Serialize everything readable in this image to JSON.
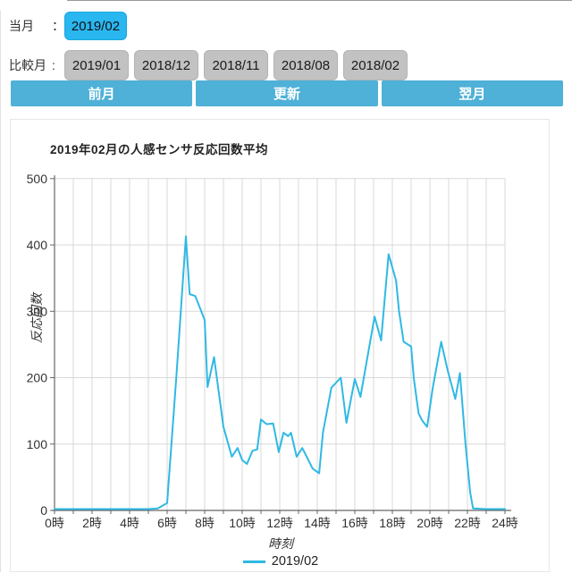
{
  "controls": {
    "current_month": {
      "label": "当月",
      "colon": "：",
      "value": "2019/02"
    },
    "compare_months": {
      "label": "比較月",
      "colon": ":",
      "values": [
        "2019/01",
        "2018/12",
        "2018/11",
        "2018/08",
        "2018/02"
      ]
    },
    "nav_buttons": {
      "prev": "前月",
      "refresh": "更新",
      "next": "翌月"
    }
  },
  "colors": {
    "selected_month_bg": "#2ab6ef",
    "compare_month_bg": "#c2c2c2",
    "nav_button_bg": "#4fb1d7",
    "series_line": "#2fb9e4",
    "gridline": "#d8d8d8",
    "axis": "#666666"
  },
  "chart_data": {
    "type": "line",
    "title": "2019年02月の人感センサ反応回数平均",
    "xlabel": "時刻",
    "ylabel": "反応回数",
    "xlim": [
      0,
      24
    ],
    "ylim": [
      0,
      500
    ],
    "grid": true,
    "legend_position": "bottom",
    "x_tick_labels": [
      "0時",
      "2時",
      "4時",
      "6時",
      "8時",
      "10時",
      "12時",
      "14時",
      "16時",
      "18時",
      "20時",
      "22時",
      "24時"
    ],
    "x_tick_hours": [
      0,
      2,
      4,
      6,
      8,
      10,
      12,
      14,
      16,
      18,
      20,
      22,
      24
    ],
    "y_ticks": [
      0,
      100,
      200,
      300,
      400,
      500
    ],
    "series": [
      {
        "name": "2019/02",
        "color": "#2fb9e4",
        "points": [
          [
            0,
            2
          ],
          [
            0.5,
            2
          ],
          [
            1,
            2
          ],
          [
            1.5,
            2
          ],
          [
            2,
            2
          ],
          [
            2.5,
            2
          ],
          [
            3,
            2
          ],
          [
            3.5,
            2
          ],
          [
            4,
            2
          ],
          [
            4.5,
            2
          ],
          [
            5,
            2
          ],
          [
            5.5,
            3
          ],
          [
            6,
            11
          ],
          [
            6.5,
            205
          ],
          [
            7,
            413
          ],
          [
            7.2,
            326
          ],
          [
            7.5,
            323
          ],
          [
            8,
            287
          ],
          [
            8.15,
            186
          ],
          [
            8.5,
            231
          ],
          [
            9,
            126
          ],
          [
            9.45,
            81
          ],
          [
            9.75,
            94
          ],
          [
            10,
            76
          ],
          [
            10.25,
            70
          ],
          [
            10.55,
            90
          ],
          [
            10.8,
            92
          ],
          [
            11,
            137
          ],
          [
            11.3,
            130
          ],
          [
            11.65,
            131
          ],
          [
            11.95,
            88
          ],
          [
            12.2,
            117
          ],
          [
            12.45,
            112
          ],
          [
            12.6,
            117
          ],
          [
            12.9,
            81
          ],
          [
            13.2,
            94
          ],
          [
            13.4,
            83
          ],
          [
            13.75,
            63
          ],
          [
            14.1,
            56
          ],
          [
            14.3,
            117
          ],
          [
            14.75,
            185
          ],
          [
            15.25,
            200
          ],
          [
            15.55,
            132
          ],
          [
            16,
            198
          ],
          [
            16.3,
            171
          ],
          [
            17.05,
            292
          ],
          [
            17.4,
            256
          ],
          [
            17.8,
            386
          ],
          [
            18.2,
            346
          ],
          [
            18.35,
            301
          ],
          [
            18.6,
            254
          ],
          [
            19,
            247
          ],
          [
            19.15,
            198
          ],
          [
            19.4,
            146
          ],
          [
            19.6,
            135
          ],
          [
            19.85,
            126
          ],
          [
            20.15,
            184
          ],
          [
            20.6,
            254
          ],
          [
            20.95,
            211
          ],
          [
            21.35,
            168
          ],
          [
            21.6,
            207
          ],
          [
            21.9,
            99
          ],
          [
            22.15,
            27
          ],
          [
            22.3,
            3
          ],
          [
            23,
            2
          ],
          [
            24,
            2
          ]
        ]
      }
    ]
  }
}
